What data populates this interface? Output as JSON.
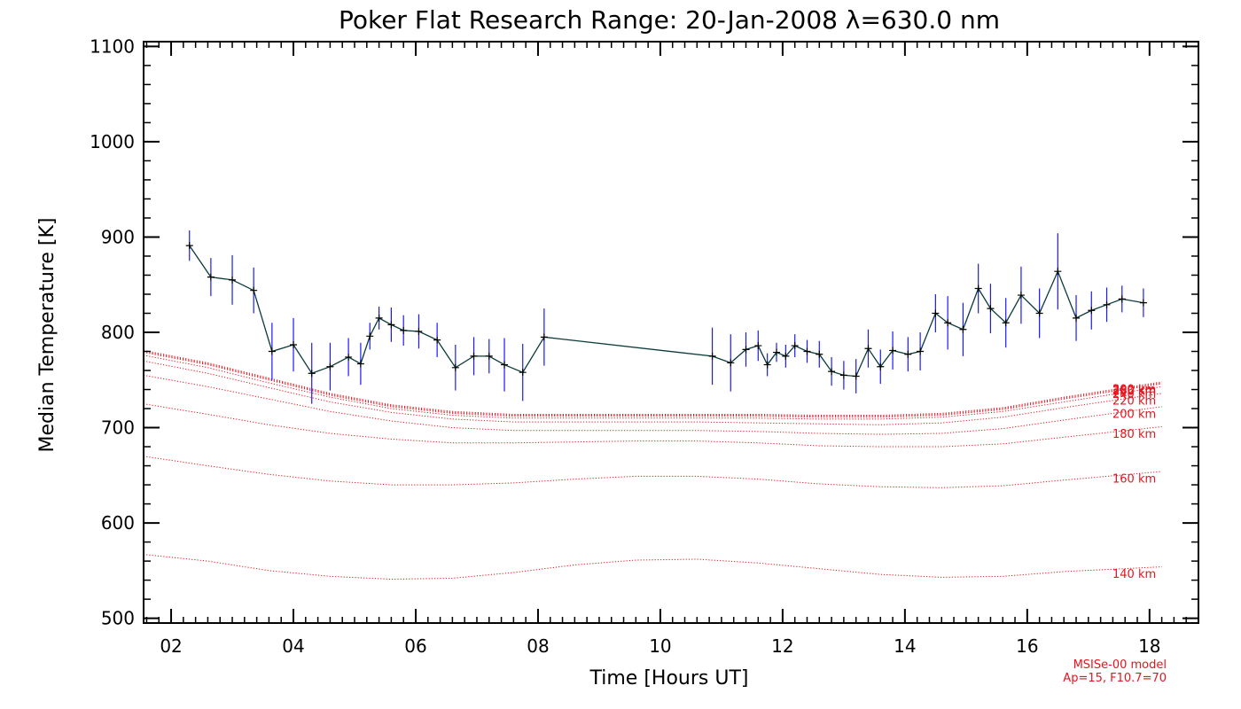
{
  "chart_data": {
    "type": "line",
    "title": "Poker Flat Research Range: 20-Jan-2008 λ=630.0 nm",
    "xlabel": "Time [Hours UT]",
    "ylabel": "Median Temperature [K]",
    "xlim": [
      1.55,
      18.8
    ],
    "ylim": [
      495,
      1105
    ],
    "x_ticks": [
      2,
      4,
      6,
      8,
      10,
      12,
      14,
      16,
      18
    ],
    "x_tick_labels": [
      "02",
      "04",
      "06",
      "08",
      "10",
      "12",
      "14",
      "16",
      "18"
    ],
    "y_ticks": [
      500,
      600,
      700,
      800,
      900,
      1000,
      1100
    ],
    "y_tick_labels": [
      "500",
      "600",
      "700",
      "800",
      "900",
      "1000",
      "1100"
    ],
    "colors": {
      "data_line": "#0a3a3a",
      "error_bar": "#1a1aff",
      "model": "#e8141e",
      "axis": "#000000"
    },
    "series": [
      {
        "x": [
          2.3,
          2.65,
          3.0,
          3.35,
          3.65,
          4.0,
          4.3,
          4.6,
          4.9,
          5.1,
          5.25,
          5.4,
          5.6,
          5.8,
          6.05,
          6.35,
          6.65,
          6.95,
          7.2,
          7.45,
          7.75,
          8.1,
          10.85,
          11.15,
          11.4,
          11.6,
          11.75,
          11.9,
          12.05,
          12.2,
          12.4,
          12.6,
          12.8,
          13.0,
          13.2,
          13.4,
          13.6,
          13.8,
          14.05,
          14.25,
          14.5,
          14.7,
          14.95,
          15.2,
          15.4,
          15.65,
          15.9,
          16.2,
          16.5,
          16.8,
          17.05,
          17.3,
          17.55,
          17.9
        ],
        "y": [
          891,
          858,
          855,
          844,
          780,
          787,
          757,
          764,
          774,
          767,
          796,
          815,
          808,
          802,
          801,
          792,
          763,
          775,
          775,
          766,
          758,
          795,
          775,
          768,
          782,
          786,
          766,
          779,
          775,
          786,
          780,
          777,
          759,
          755,
          754,
          783,
          764,
          781,
          777,
          780,
          820,
          810,
          803,
          846,
          825,
          810,
          839,
          820,
          864,
          815,
          823,
          829,
          835,
          831
        ],
        "err": [
          16,
          20,
          26,
          24,
          30,
          28,
          32,
          25,
          20,
          22,
          14,
          12,
          18,
          16,
          18,
          18,
          24,
          20,
          18,
          28,
          30,
          30,
          30,
          30,
          18,
          16,
          12,
          10,
          12,
          12,
          12,
          14,
          15,
          15,
          18,
          20,
          18,
          20,
          18,
          20,
          20,
          28,
          28,
          26,
          26,
          26,
          30,
          26,
          40,
          24,
          20,
          18,
          14,
          15
        ]
      }
    ],
    "model_curves": [
      {
        "label": "140 km",
        "y": [
          567,
          560,
          550,
          544,
          541,
          542,
          548,
          556,
          561,
          562,
          558,
          552,
          546,
          543,
          544,
          549,
          554
        ]
      },
      {
        "label": "160 km",
        "y": [
          670,
          660,
          651,
          644,
          640,
          640,
          642,
          646,
          649,
          649,
          646,
          641,
          638,
          637,
          639,
          645,
          654
        ]
      },
      {
        "label": "180 km",
        "y": [
          725,
          714,
          703,
          694,
          688,
          684,
          684,
          685,
          686,
          686,
          684,
          681,
          680,
          680,
          683,
          690,
          701
        ]
      },
      {
        "label": "200 km",
        "y": [
          755,
          743,
          730,
          717,
          707,
          700,
          697,
          697,
          697,
          697,
          696,
          694,
          693,
          694,
          699,
          708,
          722
        ]
      },
      {
        "label": "220 km",
        "y": [
          770,
          757,
          742,
          727,
          716,
          709,
          706,
          706,
          706,
          706,
          705,
          704,
          703,
          705,
          711,
          721,
          736
        ]
      },
      {
        "label": "240 km",
        "y": [
          776,
          763,
          747,
          732,
          720,
          713,
          710,
          710,
          710,
          710,
          710,
          709,
          709,
          711,
          717,
          727,
          743
        ]
      },
      {
        "label": "260 km",
        "y": [
          779,
          766,
          750,
          734,
          722,
          715,
          712,
          712,
          712,
          712,
          712,
          711,
          711,
          713,
          719,
          730,
          746
        ]
      },
      {
        "label": "280 km",
        "y": [
          780,
          767,
          751,
          735,
          723,
          716,
          713,
          713,
          713,
          713,
          713,
          712,
          712,
          714,
          720,
          731,
          747
        ]
      },
      {
        "label": "300 km",
        "y": [
          781,
          768,
          752,
          736,
          724,
          717,
          714,
          714,
          714,
          714,
          714,
          713,
          713,
          715,
          721,
          732,
          748
        ]
      }
    ],
    "model_x": [
      1.55,
      2.6,
      3.6,
      4.6,
      5.6,
      6.6,
      7.6,
      8.6,
      9.6,
      10.6,
      11.6,
      12.6,
      13.6,
      14.6,
      15.6,
      16.6,
      18.2
    ],
    "note_line1": "MSISe-00 model",
    "note_line2": "Ap=15, F10.7=70"
  }
}
